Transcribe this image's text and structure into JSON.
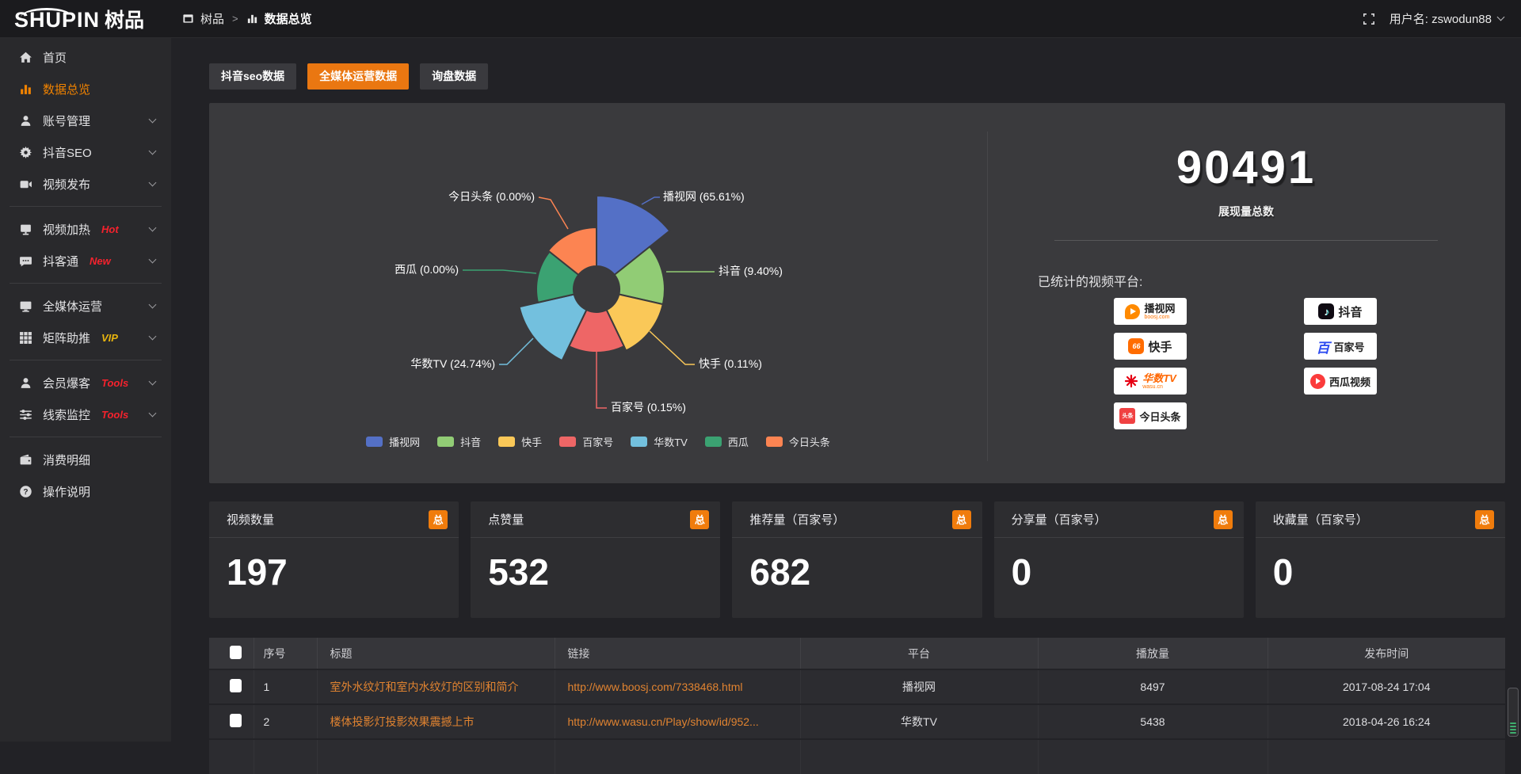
{
  "colors": {
    "accent_orange": "#ea7711",
    "sidebar_active": "#f08200",
    "badge_orange": "#f07c0c",
    "hot_red": "#f5222d",
    "vip_gold": "#e7b40e",
    "table_link_orange": "#e08330",
    "panel_bg": "#3a3a3d",
    "pie_palette": [
      "#5470c6",
      "#91cc75",
      "#fac858",
      "#ee6666",
      "#73c0de",
      "#3ba272",
      "#fc8452"
    ]
  },
  "header": {
    "logo_en": "SHUPIN",
    "logo_cn": "树品",
    "breadcrumb_root": "树品",
    "breadcrumb_sep": ">",
    "breadcrumb_current": "数据总览",
    "username_label": "用户名: zswodun88"
  },
  "sidebar": {
    "items": [
      {
        "label": "首页",
        "icon": "home-icon"
      },
      {
        "label": "数据总览",
        "icon": "bar-chart-icon",
        "active": true
      },
      {
        "label": "账号管理",
        "icon": "user-icon"
      },
      {
        "label": "抖音SEO",
        "icon": "gear-icon"
      },
      {
        "label": "视频发布",
        "icon": "video-publish-icon"
      },
      {
        "label": "视频加热",
        "icon": "monitor-icon",
        "badge": "Hot"
      },
      {
        "label": "抖客通",
        "icon": "chat-icon",
        "badge": "New"
      },
      {
        "label": "全媒体运营",
        "icon": "screen-icon"
      },
      {
        "label": "矩阵助推",
        "icon": "grid-icon",
        "badge": "VIP"
      },
      {
        "label": "会员爆客",
        "icon": "person-icon",
        "badge": "Tools"
      },
      {
        "label": "线索监控",
        "icon": "sliders-icon",
        "badge": "Tools"
      },
      {
        "label": "消费明细",
        "icon": "wallet-icon"
      },
      {
        "label": "操作说明",
        "icon": "help-icon"
      }
    ]
  },
  "tabs": [
    {
      "label": "抖音seo数据",
      "active": false
    },
    {
      "label": "全媒体运营数据",
      "active": true
    },
    {
      "label": "询盘数据",
      "active": false
    }
  ],
  "chart_data": {
    "type": "pie",
    "style": "nightingale-rose",
    "legend_position": "bottom",
    "title": "",
    "items": [
      {
        "name": "播视网",
        "value_pct": "65.61",
        "color": "#5470c6"
      },
      {
        "name": "抖音",
        "value_pct": "9.40",
        "color": "#91cc75"
      },
      {
        "name": "快手",
        "value_pct": "0.11",
        "color": "#fac858"
      },
      {
        "name": "百家号",
        "value_pct": "0.15",
        "color": "#ee6666"
      },
      {
        "name": "华数TV",
        "value_pct": "24.74",
        "color": "#73c0de"
      },
      {
        "name": "西瓜",
        "value_pct": "0.00",
        "color": "#3ba272"
      },
      {
        "name": "今日头条",
        "value_pct": "0.00",
        "color": "#fc8452"
      }
    ]
  },
  "summary": {
    "total_value": "90491",
    "total_label": "展现量总数",
    "platforms_label": "已统计的视频平台:",
    "platforms": [
      {
        "name": "播视网",
        "sub": "boosj.com"
      },
      {
        "name": "抖音"
      },
      {
        "name": "快手"
      },
      {
        "name": "百家号"
      },
      {
        "name": "华数TV",
        "sub": "wasu.cn"
      },
      {
        "name": "西瓜视频"
      },
      {
        "name": "今日头条"
      }
    ]
  },
  "stats": {
    "badge_label": "总",
    "cards": [
      {
        "title": "视频数量",
        "value": "197"
      },
      {
        "title": "点赞量",
        "value": "532"
      },
      {
        "title": "推荐量（百家号）",
        "value": "682"
      },
      {
        "title": "分享量（百家号）",
        "value": "0"
      },
      {
        "title": "收藏量（百家号）",
        "value": "0"
      }
    ]
  },
  "table": {
    "columns": [
      "序号",
      "标题",
      "链接",
      "平台",
      "播放量",
      "发布时间"
    ],
    "rows": [
      {
        "no": "1",
        "title": "室外水纹灯和室内水纹灯的区别和简介",
        "link": "http://www.boosj.com/7338468.html",
        "platform": "播视网",
        "plays": "8497",
        "time": "2017-08-24 17:04"
      },
      {
        "no": "2",
        "title": "楼体投影灯投影效果震撼上市",
        "link": "http://www.wasu.cn/Play/show/id/952...",
        "platform": "华数TV",
        "plays": "5438",
        "time": "2018-04-26 16:24"
      }
    ]
  }
}
